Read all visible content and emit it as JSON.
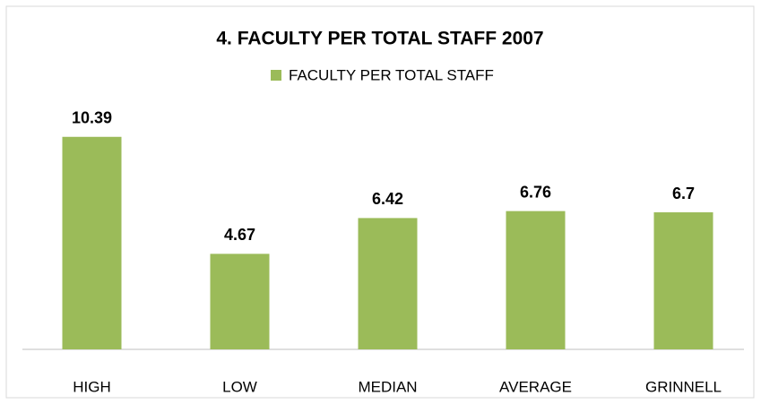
{
  "chart_data": {
    "type": "bar",
    "title": "4. FACULTY PER TOTAL STAFF 2007",
    "categories": [
      "HIGH",
      "LOW",
      "MEDIAN",
      "AVERAGE",
      "GRINNELL"
    ],
    "series": [
      {
        "name": "FACULTY PER TOTAL STAFF",
        "color": "#9bbb59",
        "values": [
          10.39,
          4.67,
          6.42,
          6.76,
          6.7
        ]
      }
    ],
    "ylim": [
      0,
      12
    ],
    "legend": "top"
  }
}
